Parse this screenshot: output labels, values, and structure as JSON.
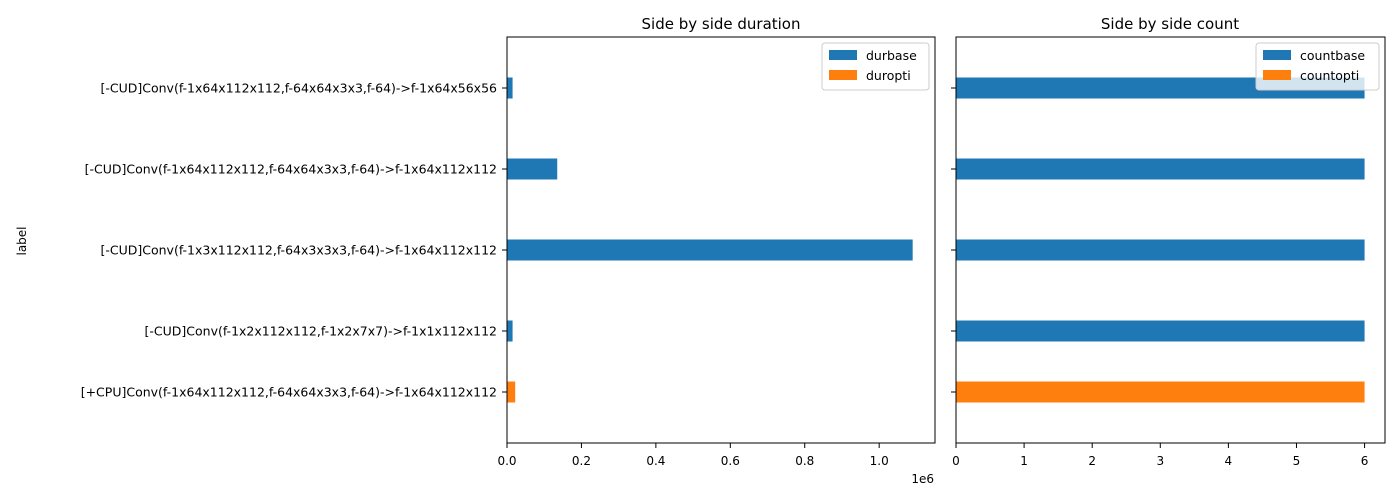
{
  "chart_data": [
    {
      "type": "bar",
      "orientation": "horizontal",
      "title": "Side by side duration",
      "ylabel": "label",
      "xlabel": "",
      "x_offset_label": "1e6",
      "xlim": [
        0,
        1150000
      ],
      "xticks": [
        0,
        200000,
        400000,
        600000,
        800000,
        1000000
      ],
      "xtick_labels": [
        "0.0",
        "0.2",
        "0.4",
        "0.6",
        "0.8",
        "1.0"
      ],
      "categories": [
        "[-CUD]Conv(f-1x64x112x112,f-64x64x3x3,f-64)->f-1x64x56x56",
        "[-CUD]Conv(f-1x64x112x112,f-64x64x3x3,f-64)->f-1x64x112x112",
        "[-CUD]Conv(f-1x3x112x112,f-64x3x3x3,f-64)->f-1x64x112x112",
        "[-CUD]Conv(f-1x2x112x112,f-1x2x7x7)->f-1x1x112x112",
        "[+CPU]Conv(f-1x64x112x112,f-64x64x3x3,f-64)->f-1x64x112x112"
      ],
      "series": [
        {
          "name": "durbase",
          "color": "#1f77b4",
          "values": [
            15000,
            135000,
            1090000,
            15000,
            0
          ]
        },
        {
          "name": "duropti",
          "color": "#ff7f0e",
          "values": [
            0,
            0,
            0,
            0,
            22000
          ]
        }
      ],
      "legend": "upper right"
    },
    {
      "type": "bar",
      "orientation": "horizontal",
      "title": "Side by side count",
      "xlabel": "",
      "xlim": [
        0,
        6.3
      ],
      "xticks": [
        0,
        1,
        2,
        3,
        4,
        5,
        6
      ],
      "xtick_labels": [
        "0",
        "1",
        "2",
        "3",
        "4",
        "5",
        "6"
      ],
      "categories": [
        "[-CUD]Conv(f-1x64x112x112,f-64x64x3x3,f-64)->f-1x64x56x56",
        "[-CUD]Conv(f-1x64x112x112,f-64x64x3x3,f-64)->f-1x64x112x112",
        "[-CUD]Conv(f-1x3x112x112,f-64x3x3x3,f-64)->f-1x64x112x112",
        "[-CUD]Conv(f-1x2x112x112,f-1x2x7x7)->f-1x1x112x112",
        "[+CPU]Conv(f-1x64x112x112,f-64x64x3x3,f-64)->f-1x64x112x112"
      ],
      "series": [
        {
          "name": "countbase",
          "color": "#1f77b4",
          "values": [
            6,
            6,
            6,
            6,
            0
          ]
        },
        {
          "name": "countopti",
          "color": "#ff7f0e",
          "values": [
            0,
            0,
            0,
            0,
            6
          ]
        }
      ],
      "legend": "upper right"
    }
  ]
}
